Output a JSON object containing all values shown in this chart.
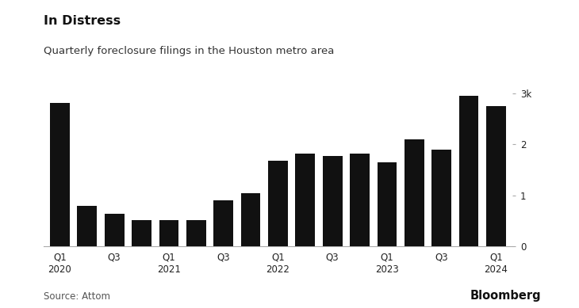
{
  "title": "In Distress",
  "subtitle": "Quarterly foreclosure filings in the Houston metro area",
  "source": "Source: Attom",
  "branding": "Bloomberg",
  "bar_color": "#111111",
  "background_color": "#ffffff",
  "values": [
    2820,
    800,
    640,
    520,
    510,
    520,
    900,
    1050,
    1680,
    1820,
    1770,
    1820,
    1650,
    2100,
    1900,
    2950,
    2750
  ],
  "n_bars": 17,
  "tick_positions": [
    0,
    2,
    4,
    6,
    8,
    10,
    12,
    14,
    16
  ],
  "tick_labels": [
    "Q1\n2020",
    "Q3",
    "Q1\n2021",
    "Q3",
    "Q1\n2022",
    "Q3",
    "Q1\n2023",
    "Q3",
    "Q1\n2024"
  ],
  "ylim": [
    0,
    3200
  ],
  "yticks": [
    0,
    1000,
    2000,
    3000
  ],
  "ytick_labels": [
    "0",
    "1",
    "2",
    "3k"
  ]
}
